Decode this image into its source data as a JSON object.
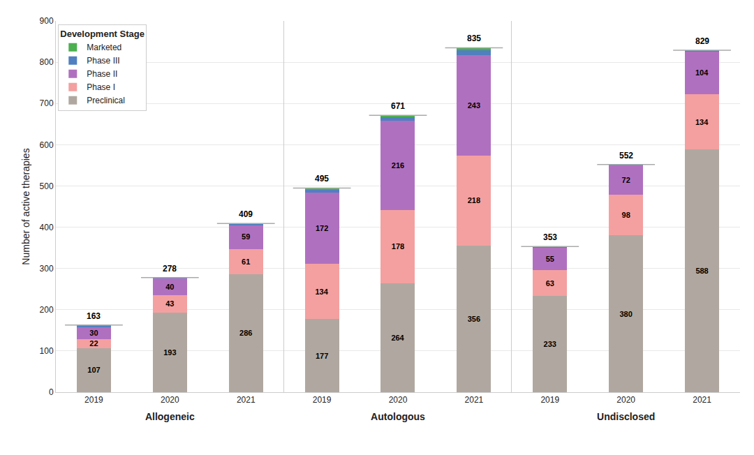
{
  "chart_data": [
    {
      "type": "bar",
      "stacked": true,
      "xlabel": "Allogeneic",
      "ylabel": "Number of active therapies",
      "categories": [
        "2019",
        "2020",
        "2021"
      ],
      "series": [
        {
          "name": "Preclinical",
          "color": "#b0a8a0",
          "values": [
            107,
            193,
            286
          ],
          "data_labels": true
        },
        {
          "name": "Phase I",
          "color": "#f4a0a0",
          "values": [
            22,
            43,
            61
          ],
          "data_labels": true
        },
        {
          "name": "Phase II",
          "color": "#b070c0",
          "values": [
            30,
            40,
            59
          ],
          "data_labels": true
        },
        {
          "name": "Phase III",
          "color": "#5080c0",
          "values": [
            3,
            2,
            3
          ],
          "data_labels": false
        },
        {
          "name": "Marketed",
          "color": "#4caf50",
          "values": [
            1,
            0,
            0
          ],
          "data_labels": false
        }
      ],
      "totals": [
        163,
        278,
        409
      ],
      "ylim": [
        0,
        900
      ],
      "yticks": [
        0,
        100,
        200,
        300,
        400,
        500,
        600,
        700,
        800,
        900
      ],
      "grid": true,
      "legend": "upper left",
      "legend_title": "Development Stage"
    },
    {
      "type": "bar",
      "stacked": true,
      "xlabel": "Autologous",
      "categories": [
        "2019",
        "2020",
        "2021"
      ],
      "series": [
        {
          "name": "Preclinical",
          "color": "#b0a8a0",
          "values": [
            177,
            264,
            356
          ],
          "data_labels": true
        },
        {
          "name": "Phase I",
          "color": "#f4a0a0",
          "values": [
            134,
            178,
            218
          ],
          "data_labels": true
        },
        {
          "name": "Phase II",
          "color": "#b070c0",
          "values": [
            172,
            216,
            243
          ],
          "data_labels": true
        },
        {
          "name": "Phase III",
          "color": "#5080c0",
          "values": [
            8,
            9,
            12
          ],
          "data_labels": false
        },
        {
          "name": "Marketed",
          "color": "#4caf50",
          "values": [
            4,
            4,
            6
          ],
          "data_labels": false
        }
      ],
      "totals": [
        495,
        671,
        835
      ],
      "ylim": [
        0,
        900
      ],
      "yticks": [
        0,
        100,
        200,
        300,
        400,
        500,
        600,
        700,
        800,
        900
      ],
      "grid": true,
      "tick_labels": "x"
    },
    {
      "type": "bar",
      "stacked": true,
      "xlabel": "Undisclosed",
      "categories": [
        "2019",
        "2020",
        "2021"
      ],
      "series": [
        {
          "name": "Preclinical",
          "color": "#b0a8a0",
          "values": [
            233,
            380,
            588
          ],
          "data_labels": true
        },
        {
          "name": "Phase I",
          "color": "#f4a0a0",
          "values": [
            63,
            98,
            134
          ],
          "data_labels": true
        },
        {
          "name": "Phase II",
          "color": "#b070c0",
          "values": [
            55,
            72,
            104
          ],
          "data_labels": true
        },
        {
          "name": "Phase III",
          "color": "#5080c0",
          "values": [
            2,
            2,
            3
          ],
          "data_labels": false
        },
        {
          "name": "Marketed",
          "color": "#4caf50",
          "values": [
            0,
            0,
            0
          ],
          "data_labels": false
        }
      ],
      "totals": [
        353,
        552,
        829
      ],
      "ylim": [
        0,
        900
      ],
      "yticks": [
        0,
        100,
        200,
        300,
        400,
        500,
        600,
        700,
        800,
        900
      ],
      "grid": true,
      "tick_labels": "x"
    }
  ]
}
